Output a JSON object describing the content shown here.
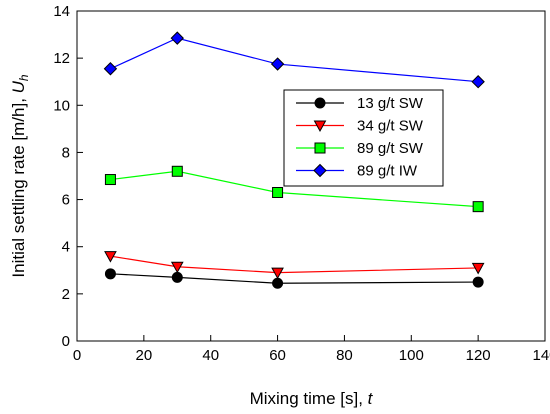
{
  "chart_data": {
    "type": "line",
    "xlabel": "Mixing time [s], ",
    "xlabel_var": "t",
    "ylabel": "Initial settling rate [m/h], ",
    "ylabel_var": "U",
    "ylabel_sub": "h",
    "xlim": [
      0,
      140
    ],
    "ylim": [
      0,
      14
    ],
    "xticks": [
      0,
      20,
      40,
      60,
      80,
      100,
      120,
      140
    ],
    "yticks": [
      0,
      2,
      4,
      6,
      8,
      10,
      12,
      14
    ],
    "grid": false,
    "legend_position": "top-right",
    "x": [
      10,
      30,
      60,
      120
    ],
    "series": [
      {
        "name": "13 g/t SW",
        "values": [
          2.85,
          2.7,
          2.45,
          2.5
        ],
        "color": "#000000",
        "marker": "circle"
      },
      {
        "name": "34 g/t SW",
        "values": [
          3.6,
          3.15,
          2.9,
          3.1
        ],
        "color": "#ff0000",
        "marker": "triangle-down"
      },
      {
        "name": "89 g/t SW",
        "values": [
          6.85,
          7.2,
          6.3,
          5.7
        ],
        "color": "#00ff00",
        "marker": "square"
      },
      {
        "name": "89 g/t  IW",
        "values": [
          11.55,
          12.85,
          11.75,
          11.0
        ],
        "color": "#0000ff",
        "marker": "diamond"
      }
    ]
  }
}
